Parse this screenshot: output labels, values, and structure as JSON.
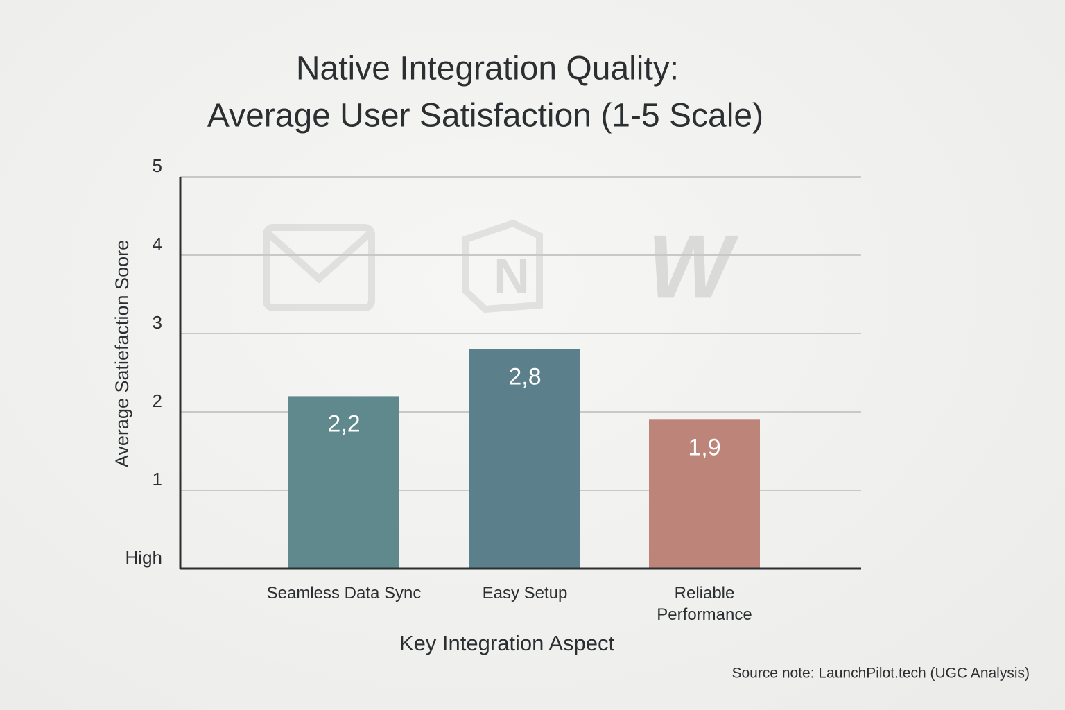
{
  "chart_data": {
    "type": "bar",
    "title": "Native Integration Quality:",
    "subtitle": "Average User Satisfaction (1-5 Scale)",
    "y_label": "Average Satiefaction Soore",
    "x_label": "Key Integration Aspect",
    "source": "Source note: LaunchPilot.tech (UGC Analysis)",
    "categories": [
      "Seamless Data Sync",
      "Easy Setup",
      "Reliable Performance"
    ],
    "values": [
      2.2,
      2.8,
      1.9
    ],
    "value_labels": [
      "2,2",
      "2,8",
      "1,9"
    ],
    "colors": [
      "#5f898c",
      "#5b808b",
      "#bd8479"
    ],
    "ylim": [
      0,
      5
    ],
    "yticks": [
      {
        "value": 0,
        "label": "High"
      },
      1,
      2,
      3,
      4,
      5
    ],
    "grid": true
  }
}
